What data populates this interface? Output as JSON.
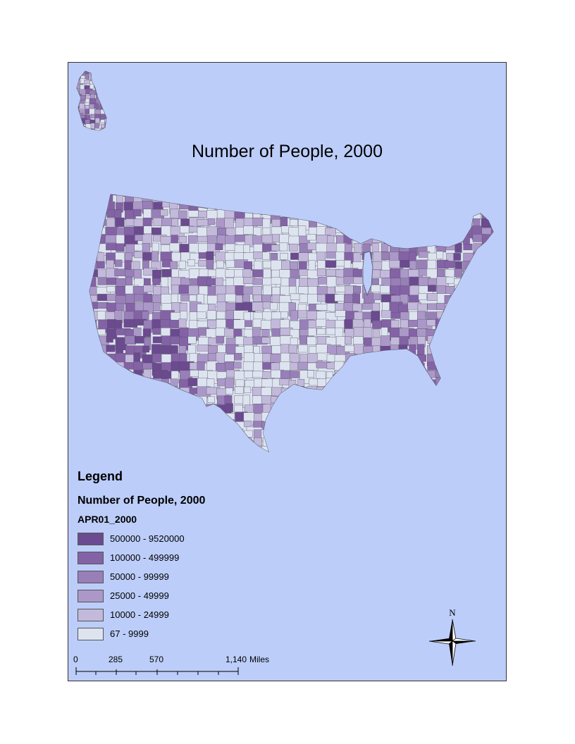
{
  "title": "Number of People, 2000",
  "legend": {
    "heading": "Legend",
    "layer": "Number of People, 2000",
    "field": "APR01_2000",
    "classes": [
      {
        "label": "500000 - 9520000",
        "color": "#6b4a8f"
      },
      {
        "label": "100000 - 499999",
        "color": "#8462a6"
      },
      {
        "label": "50000 - 99999",
        "color": "#987fb8"
      },
      {
        "label": "25000 - 49999",
        "color": "#ab98c8"
      },
      {
        "label": "10000 - 24999",
        "color": "#c3b9da"
      },
      {
        "label": "67 - 9999",
        "color": "#dde4f0"
      }
    ]
  },
  "scale": {
    "ticks": [
      "0",
      "285",
      "570",
      "1,140"
    ],
    "unit": "Miles"
  },
  "north": {
    "label": "N"
  },
  "colors": {
    "ocean": "#bccdf9",
    "border": "#555566"
  }
}
